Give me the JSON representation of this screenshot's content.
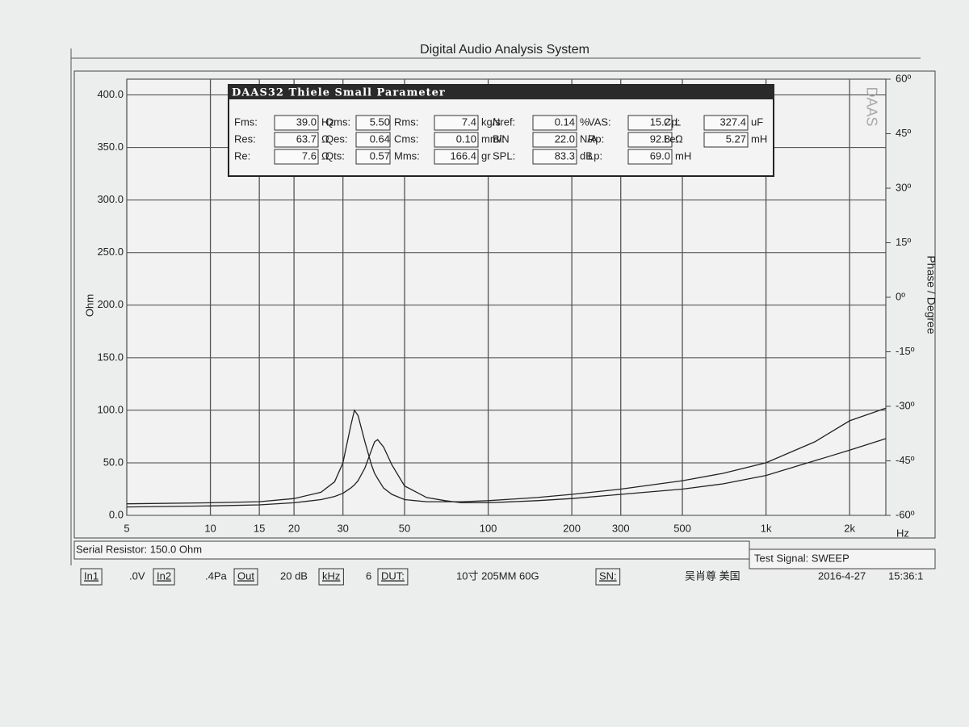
{
  "chart_data": {
    "type": "line",
    "title": "Digital Audio Analysis System",
    "x_label": "Hz",
    "y_label": "Ohm",
    "y2_label": "Phase / Degree",
    "corner_mark": "DAAS",
    "xscale": "log",
    "grid": true,
    "xlim": [
      5,
      2700
    ],
    "xticks": [
      5,
      10,
      15,
      20,
      30,
      50,
      100,
      200,
      300,
      500,
      {
        "value": 1000,
        "label": "1k"
      },
      {
        "value": 2000,
        "label": "2k"
      }
    ],
    "ylim": [
      0,
      415
    ],
    "yticks": [
      {
        "value": 0,
        "label": "0.0"
      },
      {
        "value": 50,
        "label": "50.0"
      },
      {
        "value": 100,
        "label": "100.0"
      },
      {
        "value": 150,
        "label": "150.0"
      },
      {
        "value": 200,
        "label": "200.0"
      },
      {
        "value": 250,
        "label": "250.0"
      },
      {
        "value": 300,
        "label": "300.0"
      },
      {
        "value": 350,
        "label": "350.0"
      },
      {
        "value": 400,
        "label": "400.0"
      }
    ],
    "y2lim": [
      -60,
      60
    ],
    "y2ticks": [
      {
        "value": 60,
        "label": "60º"
      },
      {
        "value": 45,
        "label": "45º"
      },
      {
        "value": 30,
        "label": "30º"
      },
      {
        "value": 15,
        "label": "15º"
      },
      {
        "value": 0,
        "label": "0º"
      },
      {
        "value": -15,
        "label": "-15º"
      },
      {
        "value": -30,
        "label": "-30º"
      },
      {
        "value": -45,
        "label": "-45º"
      },
      {
        "value": -60,
        "label": "-60º"
      }
    ],
    "x": [
      5,
      10,
      15,
      20,
      25,
      28,
      30,
      32,
      33,
      34,
      36,
      38,
      39,
      40,
      42,
      45,
      50,
      60,
      70,
      80,
      100,
      150,
      200,
      300,
      500,
      700,
      1000,
      1500,
      2000,
      2700
    ],
    "series": [
      {
        "color": "#222222",
        "values": [
          11,
          12,
          13,
          16,
          22,
          32,
          50,
          85,
          100,
          95,
          70,
          48,
          40,
          35,
          26,
          20,
          15,
          13,
          13,
          13,
          14,
          17,
          20,
          25,
          33,
          40,
          50,
          70,
          90,
          102
        ]
      },
      {
        "color": "#222222",
        "values": [
          8,
          9,
          10,
          12,
          15,
          18,
          21,
          26,
          29,
          33,
          45,
          62,
          70,
          72,
          65,
          48,
          28,
          17,
          14,
          12,
          12,
          14,
          16,
          20,
          25,
          30,
          38,
          52,
          62,
          73
        ]
      }
    ]
  },
  "parameters": {
    "title": "DAAS32 Thiele Small Parameter",
    "rows": [
      [
        {
          "label": "Fms:",
          "value": "39.0",
          "unit": "Hz"
        },
        {
          "label": "Qms:",
          "value": "5.50"
        },
        {
          "label": "Rms:",
          "value": "7.4",
          "unit": "kg/s"
        },
        {
          "label": "Nref:",
          "value": "0.14",
          "unit": "%"
        },
        {
          "label": "VAS:",
          "value": "15.2",
          "unit": "L"
        },
        {
          "label": "Cp:",
          "value": "327.4",
          "unit": "uF"
        }
      ],
      [
        {
          "label": "Res:",
          "value": "63.7",
          "unit": "Ω"
        },
        {
          "label": "Qes:",
          "value": "0.64"
        },
        {
          "label": "Cms:",
          "value": "0.10",
          "unit": "mm/N"
        },
        {
          "label": "Bl:",
          "value": "22.0",
          "unit": "N/A"
        },
        {
          "label": "Rp:",
          "value": "92.8",
          "unit": "Ω"
        },
        {
          "label": "Le:",
          "value": "5.27",
          "unit": "mH"
        }
      ],
      [
        {
          "label": "Re:",
          "value": "7.6",
          "unit": "Ω"
        },
        {
          "label": "Qts:",
          "value": "0.57"
        },
        {
          "label": "Mms:",
          "value": "166.4",
          "unit": "gr"
        },
        {
          "label": "SPL:",
          "value": "83.3",
          "unit": "dB"
        },
        {
          "label": "Lp:",
          "value": "69.0",
          "unit": "mH"
        }
      ]
    ]
  },
  "footer": {
    "serial_resistor": "Serial Resistor: 150.0 Ohm",
    "test_signal": "Test Signal: SWEEP",
    "items": [
      "In1",
      ".0V",
      "In2",
      ".4Pa",
      "Out",
      "20 dB",
      "kHz",
      "6",
      "DUT:",
      "10寸 205MM 60G",
      "SN:",
      "吴肖尊 美国",
      "2016-4-27",
      "15:36:1"
    ]
  }
}
